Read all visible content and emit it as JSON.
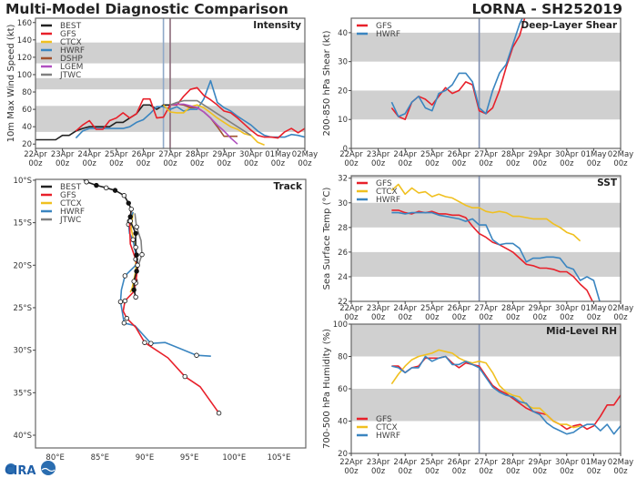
{
  "header": {
    "title": "Multi-Model Diagnostic Comparison",
    "storm": "LORNA - SH252019"
  },
  "logo": {
    "text": "CIRA"
  },
  "colors": {
    "BEST": "#222222",
    "GFS": "#e8202a",
    "CTCX": "#f0c020",
    "HWRF": "#3a85c0",
    "DSHP": "#a0522d",
    "LGEM": "#b050c0",
    "JTWC": "#808080",
    "band": "#d0d0d0"
  },
  "time_axis": {
    "start": "2019-04-22T00",
    "end": "2019-05-02T00",
    "date_labels": [
      "22Apr",
      "23Apr",
      "24Apr",
      "25Apr",
      "26Apr",
      "27Apr",
      "28Apr",
      "29Apr",
      "30Apr",
      "01May",
      "02May"
    ],
    "hour_labels": [
      "00z",
      "00z",
      "00z",
      "00z",
      "00z",
      "00z",
      "00z",
      "00z",
      "00z",
      "00z",
      "00z"
    ]
  },
  "chart_data": [
    {
      "id": "intensity",
      "type": "line",
      "title": "Intensity",
      "ylabel": "10m Max Wind Speed (kt)",
      "ylim": [
        15,
        165
      ],
      "yticks": [
        20,
        40,
        60,
        80,
        100,
        120,
        140,
        160
      ],
      "bands": [
        [
          34,
          64
        ],
        [
          83,
          96
        ],
        [
          113,
          137
        ]
      ],
      "marker_times": [
        {
          "t": "2019-04-26T18",
          "color": "#8fa8c8"
        },
        {
          "t": "2019-04-27T00",
          "color": "#8a6a7a"
        }
      ],
      "legend": [
        "BEST",
        "GFS",
        "CTCX",
        "HWRF",
        "DSHP",
        "LGEM",
        "JTWC"
      ],
      "series": [
        {
          "name": "BEST",
          "start": "2019-04-22T00",
          "step_hours": 6,
          "values": [
            25,
            25,
            25,
            25,
            30,
            30,
            35,
            38,
            40,
            40,
            40,
            40,
            45,
            45,
            50,
            55,
            65,
            65,
            60,
            65,
            65
          ]
        },
        {
          "name": "HWRF",
          "start": "2019-04-23T12",
          "step_hours": 6,
          "values": [
            27,
            35,
            38,
            38,
            38,
            38,
            38,
            38,
            40,
            45,
            48,
            55,
            63,
            63,
            60,
            63,
            58,
            60,
            60,
            72,
            93,
            68,
            62,
            58,
            52,
            47,
            42,
            35,
            30,
            28,
            28,
            28,
            31,
            30,
            28,
            30,
            29
          ]
        },
        {
          "name": "GFS",
          "start": "2019-04-23T12",
          "step_hours": 6,
          "values": [
            35,
            42,
            47,
            37,
            37,
            47,
            50,
            56,
            50,
            55,
            72,
            72,
            50,
            51,
            65,
            65,
            75,
            83,
            85,
            76,
            71,
            65,
            58,
            56,
            50,
            43,
            36,
            30,
            28,
            28,
            27,
            34,
            38,
            33,
            38
          ]
        },
        {
          "name": "CTCX",
          "start": "2019-04-26T18",
          "step_hours": 6,
          "values": [
            65,
            57,
            56,
            56,
            63,
            65,
            62,
            56,
            50,
            45,
            40,
            37,
            32,
            30,
            22,
            19
          ]
        },
        {
          "name": "DSHP",
          "start": "2019-04-27T00",
          "step_hours": 6,
          "values": [
            65,
            66,
            65,
            62,
            62,
            57,
            50,
            40,
            29,
            29,
            29
          ]
        },
        {
          "name": "LGEM",
          "start": "2019-04-27T00",
          "step_hours": 6,
          "values": [
            65,
            66,
            66,
            64,
            62,
            57,
            50,
            42,
            35,
            27,
            20
          ]
        },
        {
          "name": "JTWC",
          "start": "2019-04-27T00",
          "step_hours": 6,
          "values": [
            65,
            68,
            70,
            70,
            70,
            65,
            60,
            55,
            50,
            45,
            40,
            35,
            30
          ]
        }
      ]
    },
    {
      "id": "shear",
      "type": "line",
      "title": "Deep-Layer Shear",
      "ylabel": "200-850 hPa Shear (kt)",
      "ylim": [
        0,
        45
      ],
      "yticks": [
        0,
        10,
        20,
        30,
        40
      ],
      "bands": [
        [
          10,
          20
        ],
        [
          30,
          40
        ]
      ],
      "marker_times": [
        {
          "t": "2019-04-26T18",
          "color": "#7f8fb0"
        }
      ],
      "legend": [
        "GFS",
        "HWRF"
      ],
      "series": [
        {
          "name": "GFS",
          "start": "2019-04-23T12",
          "step_hours": 6,
          "values": [
            14,
            11,
            10,
            16,
            18,
            17,
            15,
            18,
            21,
            19,
            20,
            23,
            22,
            13,
            12,
            14,
            20,
            28,
            35,
            39,
            47
          ]
        },
        {
          "name": "HWRF",
          "start": "2019-04-23T12",
          "step_hours": 6,
          "values": [
            16,
            11,
            12,
            16,
            18,
            14,
            13,
            19,
            20,
            22,
            26,
            26,
            23,
            14,
            12,
            20,
            26,
            29,
            36,
            43,
            48
          ]
        }
      ]
    },
    {
      "id": "sst",
      "type": "line",
      "title": "SST",
      "ylabel": "Sea Surface Temp (°C)",
      "ylim": [
        22,
        32.2
      ],
      "yticks": [
        22,
        24,
        26,
        28,
        30,
        32
      ],
      "bands": [
        [
          24,
          26
        ],
        [
          28,
          30
        ],
        [
          32,
          33
        ]
      ],
      "marker_times": [
        {
          "t": "2019-04-26T18",
          "color": "#7f8fb0"
        }
      ],
      "legend": [
        "GFS",
        "CTCX",
        "HWRF"
      ],
      "series": [
        {
          "name": "GFS",
          "start": "2019-04-23T12",
          "step_hours": 6,
          "values": [
            29.4,
            29.4,
            29.2,
            29.1,
            29.3,
            29.2,
            29.3,
            29.1,
            29.1,
            29.0,
            29.0,
            28.8,
            28.1,
            27.5,
            27.2,
            26.8,
            26.6,
            26.3,
            26.0,
            25.5,
            25.0,
            24.9,
            24.7,
            24.7,
            24.6,
            24.4,
            24.4,
            24.0,
            23.4,
            22.9,
            21.8
          ]
        },
        {
          "name": "CTCX",
          "start": "2019-04-23T12",
          "step_hours": 6,
          "values": [
            31.0,
            31.5,
            30.7,
            31.2,
            30.8,
            30.9,
            30.5,
            30.7,
            30.5,
            30.4,
            30.1,
            29.8,
            29.6,
            29.6,
            29.3,
            29.2,
            29.3,
            29.2,
            28.9,
            28.9,
            28.8,
            28.7,
            28.7,
            28.7,
            28.3,
            28.0,
            27.6,
            27.4,
            26.9
          ]
        },
        {
          "name": "HWRF",
          "start": "2019-04-23T12",
          "step_hours": 6,
          "values": [
            29.2,
            29.2,
            29.1,
            29.2,
            29.2,
            29.2,
            29.2,
            29.0,
            28.9,
            28.8,
            28.7,
            28.5,
            28.7,
            28.2,
            28.2,
            27.0,
            26.6,
            26.7,
            26.7,
            26.3,
            25.2,
            25.5,
            25.5,
            25.6,
            25.6,
            25.5,
            24.8,
            24.6,
            23.7,
            24.0,
            23.7,
            21.8
          ]
        }
      ]
    },
    {
      "id": "rh",
      "type": "line",
      "title": "Mid-Level RH",
      "ylabel": "700-500 hPa Humidity (%)",
      "ylim": [
        20,
        100
      ],
      "yticks": [
        20,
        40,
        60,
        80,
        100
      ],
      "bands": [
        [
          40,
          60
        ],
        [
          80,
          100
        ]
      ],
      "marker_times": [
        {
          "t": "2019-04-26T18",
          "color": "#7f8fb0"
        }
      ],
      "legend": [
        "GFS",
        "CTCX",
        "HWRF"
      ],
      "series": [
        {
          "name": "GFS",
          "start": "2019-04-23T12",
          "step_hours": 6,
          "values": [
            74,
            74,
            70,
            73,
            74,
            79,
            79,
            79,
            80,
            76,
            73,
            76,
            75,
            74,
            68,
            62,
            59,
            57,
            54,
            51,
            48,
            46,
            45,
            44,
            40,
            38,
            35,
            37,
            38,
            35,
            37,
            43,
            50,
            50,
            56
          ]
        },
        {
          "name": "CTCX",
          "start": "2019-04-23T12",
          "step_hours": 6,
          "values": [
            63,
            69,
            74,
            78,
            80,
            81,
            82,
            84,
            83,
            82,
            79,
            77,
            76,
            77,
            76,
            70,
            62,
            58,
            56,
            55,
            50,
            48,
            48,
            44,
            40,
            38,
            38,
            36,
            37
          ]
        },
        {
          "name": "HWRF",
          "start": "2019-04-23T12",
          "step_hours": 6,
          "values": [
            74,
            73,
            70,
            73,
            73,
            80,
            77,
            79,
            80,
            75,
            75,
            77,
            75,
            73,
            67,
            61,
            58,
            56,
            55,
            52,
            51,
            46,
            44,
            39,
            36,
            34,
            32,
            33,
            36,
            38,
            38,
            34,
            38,
            32,
            37,
            36
          ]
        }
      ]
    },
    {
      "id": "track",
      "type": "line",
      "title": "Track",
      "xlim": [
        77.8,
        108
      ],
      "ylim": [
        -41.5,
        -9.9
      ],
      "xticks": [
        80,
        85,
        90,
        95,
        100,
        105
      ],
      "xtick_labels": [
        "80°E",
        "85°E",
        "90°E",
        "95°E",
        "100°E",
        "105°E"
      ],
      "yticks": [
        -10,
        -15,
        -20,
        -25,
        -30,
        -35,
        -40
      ],
      "ytick_labels": [
        "10°S",
        "15°S",
        "20°S",
        "25°S",
        "30°S",
        "35°S",
        "40°S"
      ],
      "legend": [
        "BEST",
        "GFS",
        "CTCX",
        "HWRF",
        "JTWC"
      ],
      "series": [
        {
          "name": "JTWC",
          "lon": [
            88.9,
            89.1,
            89.6,
            89.7,
            89.3,
            88.95,
            88.9
          ],
          "lat": [
            -13.9,
            -15.5,
            -17.1,
            -18.75,
            -20.0,
            -21.8,
            -23.6
          ]
        },
        {
          "name": "CTCX",
          "lon": [
            88.7,
            88.5,
            89.0,
            89.0,
            88.6,
            88.4
          ],
          "lat": [
            -13.75,
            -15.7,
            -18.2,
            -20.7,
            -22.7,
            -23.2
          ]
        },
        {
          "name": "HWRF",
          "lon": [
            88.7,
            88.2,
            88.3,
            88.7,
            89.2,
            87.8,
            87.4,
            87.3,
            87.5,
            87.7,
            88.9,
            90.7,
            92.3,
            95.8,
            97.4
          ],
          "lat": [
            -13.75,
            -15.2,
            -16.25,
            -17.0,
            -19.8,
            -21.25,
            -22.9,
            -24.3,
            -25.5,
            -26.8,
            -27.1,
            -29.2,
            -29.1,
            -30.6,
            -30.7
          ]
        },
        {
          "name": "GFS",
          "lon": [
            88.5,
            88.3,
            88.4,
            89.0,
            89.2,
            89.0,
            88.7,
            87.8,
            87.6,
            88.0,
            89.0,
            90.0,
            92.6,
            94.5,
            96.2,
            98.3
          ],
          "lat": [
            -13.6,
            -14.8,
            -17.5,
            -19.3,
            -20.4,
            -22.1,
            -23.2,
            -24.2,
            -25.4,
            -26.25,
            -27.3,
            -29.1,
            -30.9,
            -33.1,
            -34.3,
            -37.4
          ]
        },
        {
          "name": "BEST",
          "lon": [
            82.8,
            83.5,
            84.6,
            85.7,
            86.7,
            87.7,
            88.2,
            88.5,
            88.4,
            88.4,
            89.0,
            89.0,
            89.1,
            89.2,
            89.1,
            88.8,
            88.8,
            89.0
          ],
          "lat": [
            -9.6,
            -10.2,
            -10.6,
            -10.9,
            -11.2,
            -11.8,
            -12.7,
            -13.4,
            -14.3,
            -14.8,
            -16.25,
            -17.9,
            -18.8,
            -20.0,
            -20.7,
            -21.9,
            -22.9,
            -23.75
          ]
        }
      ]
    }
  ]
}
